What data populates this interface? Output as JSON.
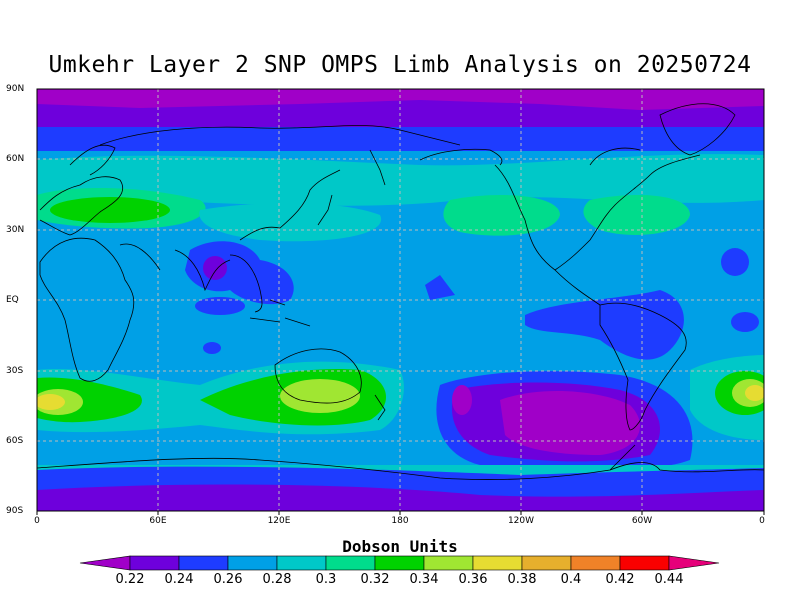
{
  "title": "Umkehr Layer 2 SNP OMPS Limb Analysis on 20250724",
  "axes": {
    "lat_ticks": [
      "90N",
      "60N",
      "30N",
      "EQ",
      "30S",
      "60S",
      "90S"
    ],
    "lon_ticks": [
      "0",
      "60E",
      "120E",
      "180",
      "120W",
      "60W",
      "0"
    ]
  },
  "colorbar": {
    "title": "Dobson Units",
    "labels": [
      "0.22",
      "0.24",
      "0.26",
      "0.28",
      "0.3",
      "0.32",
      "0.34",
      "0.36",
      "0.38",
      "0.4",
      "0.42",
      "0.44"
    ],
    "colors": [
      "#a000c8",
      "#6e00dc",
      "#1e3cff",
      "#00a0e6",
      "#00c8c8",
      "#00dc8c",
      "#00d200",
      "#a0e632",
      "#e6dc32",
      "#e6af2d",
      "#f08228",
      "#fa0000",
      "#e6007a"
    ]
  },
  "chart_data": {
    "type": "heatmap",
    "title": "Umkehr Layer 2 SNP OMPS Limb Analysis on 20250724",
    "unit": "Dobson Units",
    "xlim": [
      0,
      360
    ],
    "ylim": [
      -90,
      90
    ],
    "grid": true
  }
}
